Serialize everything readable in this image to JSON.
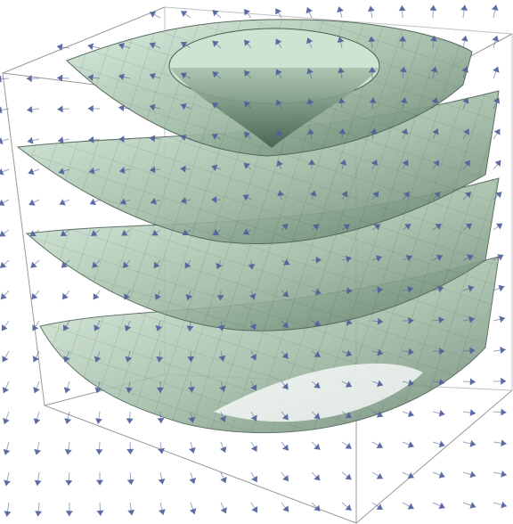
{
  "figure": {
    "kind": "3d-vector-field-with-level-surfaces",
    "surface_count": 4,
    "palette": {
      "background": "#ffffff",
      "box_edge": "#9a9a9a",
      "surface_top": "#b9d2b6",
      "surface_bottom": "#6f8f76",
      "surface_edge": "#4b5f52",
      "mesh": "#3f4f45",
      "arrow": "#4f5f9a"
    },
    "arrow_field": {
      "orientation": "outward-upward",
      "note_visible_on_canvas": false
    }
  }
}
